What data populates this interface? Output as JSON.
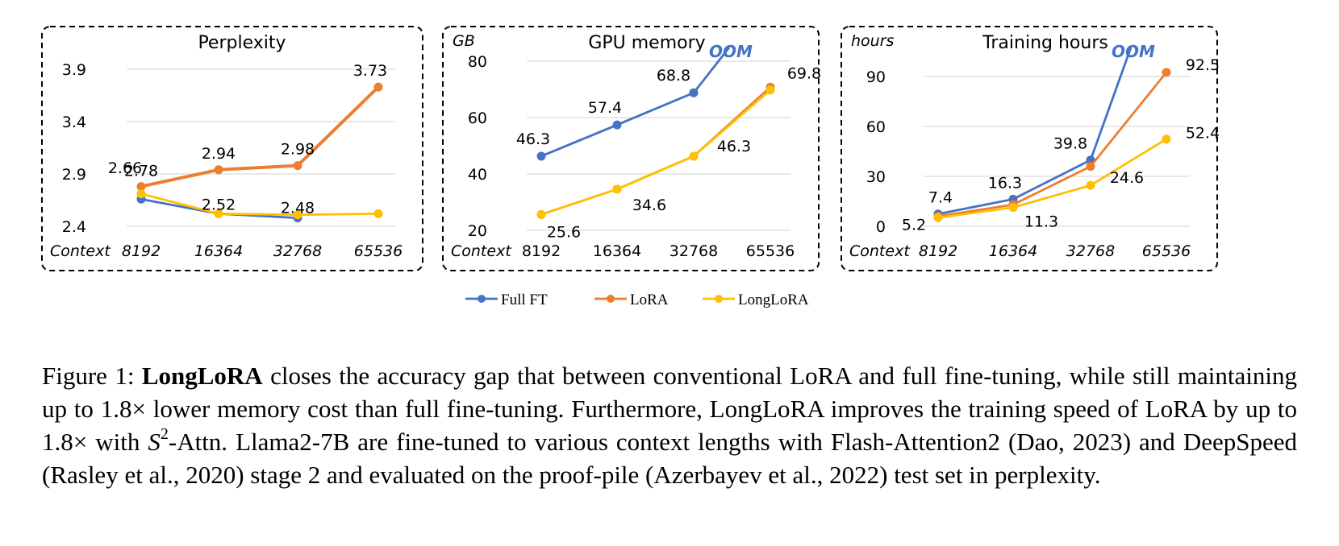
{
  "colors": {
    "Full FT": "#4472C4",
    "LoRA": "#ED7D31",
    "LongLoRA": "#FFC000",
    "grid": "#d9d9d9",
    "frame": "#000000",
    "oom": "#4472C4"
  },
  "legend": [
    "Full FT",
    "LoRA",
    "LongLoRA"
  ],
  "chart_data": [
    {
      "type": "line",
      "title": "Perplexity",
      "ylabel": "",
      "xlabel": "Context",
      "categories": [
        "8192",
        "16364",
        "32768",
        "65536"
      ],
      "yticks": [
        "2.4",
        "2.9",
        "3.4",
        "3.9"
      ],
      "ylim": [
        2.4,
        3.9
      ],
      "grid": true,
      "oom_label": "",
      "series": [
        {
          "name": "Full FT",
          "values": [
            2.66,
            2.52,
            2.48,
            null
          ]
        },
        {
          "name": "LoRA",
          "values": [
            2.78,
            2.94,
            2.98,
            3.73
          ]
        },
        {
          "name": "LongLoRA",
          "values": [
            2.71,
            2.52,
            2.51,
            2.52
          ]
        }
      ],
      "labels": [
        {
          "text": "2.78",
          "cat": 0,
          "value": 2.78
        },
        {
          "text": "2.94",
          "cat": 1,
          "value": 2.94
        },
        {
          "text": "2.98",
          "cat": 2,
          "value": 2.98
        },
        {
          "text": "3.73",
          "cat": 3,
          "value": 3.73
        },
        {
          "text": "2.66",
          "cat": 0,
          "value": 2.66
        },
        {
          "text": "2.52",
          "cat": 1,
          "value": 2.52
        },
        {
          "text": "2.48",
          "cat": 2,
          "value": 2.48
        }
      ]
    },
    {
      "type": "line",
      "title": "GPU memory",
      "ylabel": "GB",
      "xlabel": "Context",
      "categories": [
        "8192",
        "16364",
        "32768",
        "65536"
      ],
      "yticks": [
        "20",
        "40",
        "60",
        "80"
      ],
      "ylim": [
        20,
        80
      ],
      "grid": true,
      "oom_label": "OOM",
      "series": [
        {
          "name": "Full FT",
          "values": [
            46.3,
            57.4,
            68.8,
            null
          ],
          "oom_to": 85
        },
        {
          "name": "LoRA",
          "values": [
            25.6,
            34.6,
            46.3,
            70.8
          ]
        },
        {
          "name": "LongLoRA",
          "values": [
            25.6,
            34.6,
            46.3,
            69.8
          ]
        }
      ],
      "labels": [
        {
          "text": "46.3",
          "cat": 0,
          "value": 46.3
        },
        {
          "text": "57.4",
          "cat": 1,
          "value": 57.4
        },
        {
          "text": "68.8",
          "cat": 2,
          "value": 68.8
        },
        {
          "text": "25.6",
          "cat": 0,
          "value": 25.6
        },
        {
          "text": "34.6",
          "cat": 1,
          "value": 34.6
        },
        {
          "text": "46.3",
          "cat": 2,
          "value": 46.3
        },
        {
          "text": "69.8",
          "cat": 3,
          "value": 69.8
        }
      ]
    },
    {
      "type": "line",
      "title": "Training hours",
      "ylabel": "hours",
      "xlabel": "Context",
      "categories": [
        "8192",
        "16364",
        "32768",
        "65536"
      ],
      "yticks": [
        "0",
        "30",
        "60",
        "90"
      ],
      "ylim": [
        0,
        90
      ],
      "grid": true,
      "oom_label": "OOM",
      "series": [
        {
          "name": "Full FT",
          "values": [
            7.4,
            16.3,
            39.8,
            null
          ],
          "oom_to": 98
        },
        {
          "name": "LoRA",
          "values": [
            6.0,
            13.0,
            36.0,
            92.5
          ]
        },
        {
          "name": "LongLoRA",
          "values": [
            5.2,
            11.3,
            24.6,
            52.4
          ]
        }
      ],
      "labels": [
        {
          "text": "7.4",
          "cat": 0,
          "value": 7.4
        },
        {
          "text": "16.3",
          "cat": 1,
          "value": 16.3
        },
        {
          "text": "39.8",
          "cat": 2,
          "value": 39.8
        },
        {
          "text": "92.5",
          "cat": 3,
          "value": 92.5
        },
        {
          "text": "5.2",
          "cat": 0,
          "value": 5.2
        },
        {
          "text": "11.3",
          "cat": 1,
          "value": 11.3
        },
        {
          "text": "24.6",
          "cat": 2,
          "value": 24.6
        },
        {
          "text": "52.4",
          "cat": 3,
          "value": 52.4
        }
      ]
    }
  ],
  "caption": {
    "lead": "Figure 1: ",
    "bold": "LongLoRA",
    "part1": " closes the accuracy gap that between conventional LoRA and full fine-tuning, while still maintaining up to 1.8× lower memory cost than full fine-tuning. Furthermore, LongLoRA improves the training speed of LoRA by up to 1.8× with ",
    "math_base": "S",
    "math_sup": "2",
    "part2": "-Attn. Llama2-7B are fine-tuned to various context lengths with Flash-Attention2 (Dao, 2023) and DeepSpeed (Rasley et al., 2020) stage 2 and evaluated on the proof-pile (Azerbayev et al., 2022) test set in perplexity."
  }
}
